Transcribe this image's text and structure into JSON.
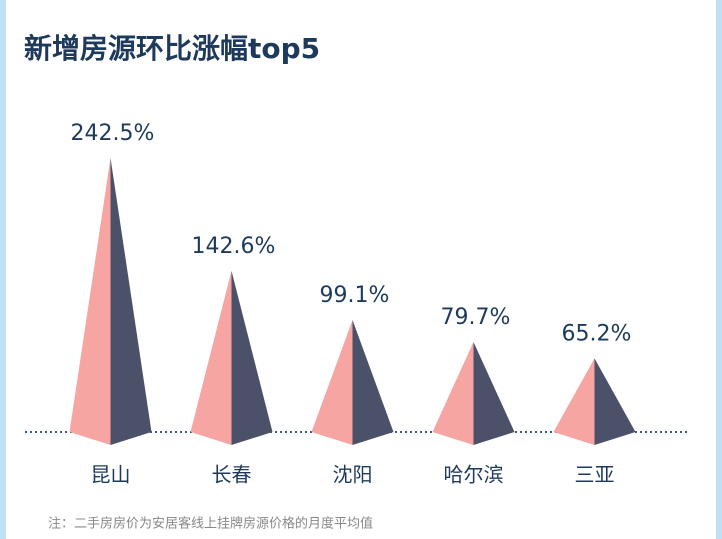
{
  "chart_data": {
    "type": "pyramid",
    "title": "新增房源环比涨幅top5",
    "categories": [
      "昆山",
      "长春",
      "沈阳",
      "哈尔滨",
      "三亚"
    ],
    "values": [
      242.5,
      142.6,
      99.1,
      79.7,
      65.2
    ],
    "value_labels": [
      "242.5%",
      "142.6%",
      "99.1%",
      "79.7%",
      "65.2%"
    ],
    "color": "#f7a5a2",
    "shade_color": "#4b5168",
    "note": "注：二手房房价为安居客线上挂牌房源价格的月度平均值"
  }
}
